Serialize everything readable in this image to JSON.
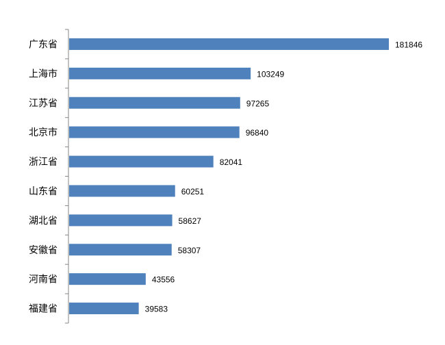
{
  "chart_data": {
    "type": "bar",
    "orientation": "horizontal",
    "title": "",
    "xlabel": "",
    "ylabel": "",
    "categories": [
      "广东省",
      "上海市",
      "江苏省",
      "北京市",
      "浙江省",
      "山东省",
      "湖北省",
      "安徽省",
      "河南省",
      "福建省"
    ],
    "values": [
      181846,
      103249,
      97265,
      96840,
      82041,
      60251,
      58627,
      58307,
      43556,
      39583
    ],
    "xlim": [
      0,
      181846
    ],
    "grid": false,
    "legend": "none",
    "bar_color": "#4f81bd",
    "data_labels": true
  }
}
